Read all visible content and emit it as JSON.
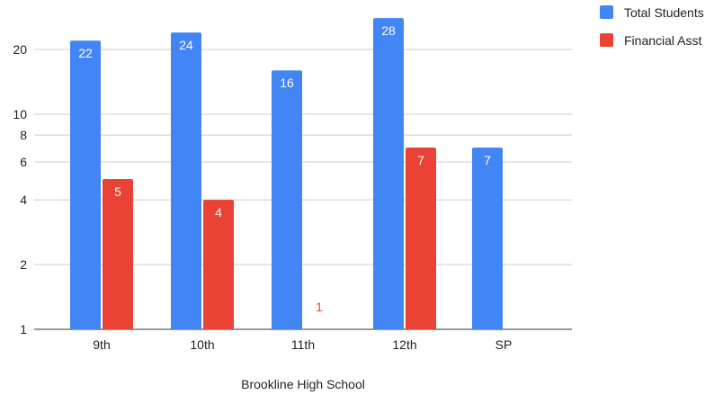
{
  "chart_data": {
    "type": "bar",
    "title": "",
    "xlabel": "Brookline High School",
    "ylabel": "",
    "yscale": "log",
    "ylim": [
      1,
      30
    ],
    "yticks": [
      1,
      2,
      4,
      6,
      8,
      10,
      20
    ],
    "ytick_labels": [
      "1",
      "2",
      "4",
      "6",
      "8",
      "10",
      "20"
    ],
    "grid": true,
    "legend_position": "top-right",
    "categories": [
      "9th",
      "10th",
      "11th",
      "12th",
      "SP"
    ],
    "series": [
      {
        "name": "Total Students",
        "color": "#4285f4",
        "values": [
          22,
          24,
          16,
          28,
          7
        ],
        "labels": [
          "22",
          "24",
          "16",
          "28",
          "7"
        ]
      },
      {
        "name": "Financial Asst",
        "color": "#ea4335",
        "values": [
          5,
          4,
          1,
          7,
          null
        ],
        "labels": [
          "5",
          "4",
          "1",
          "7",
          null
        ]
      }
    ]
  }
}
